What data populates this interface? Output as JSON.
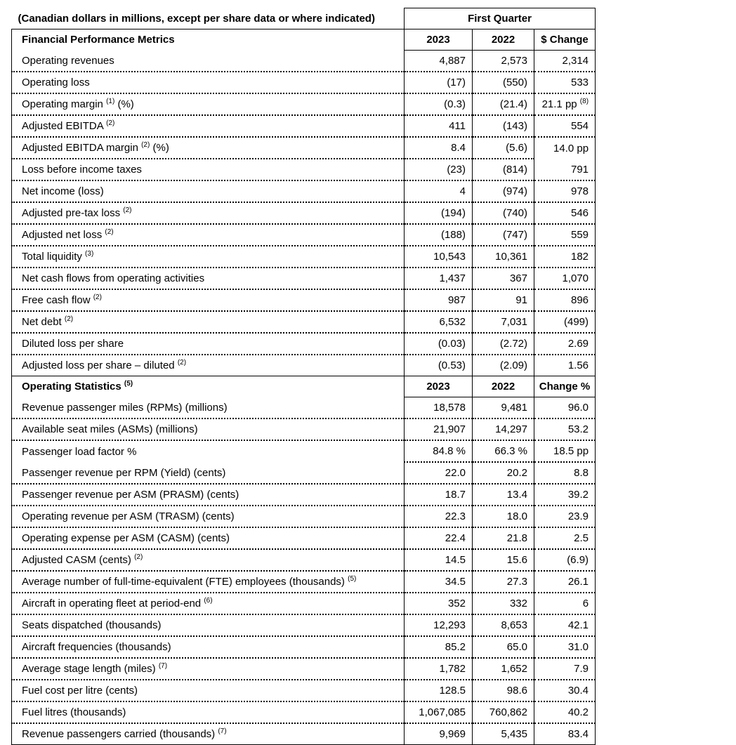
{
  "table": {
    "units_note": "(Canadian dollars in millions, except per share data or where indicated)",
    "period_header": "First Quarter",
    "sections": [
      {
        "header": {
          "label": "Financial Performance Metrics",
          "sup": "",
          "c1": "2023",
          "c2": "2022",
          "c3": "$ Change"
        },
        "rows": [
          {
            "label": "Operating revenues",
            "v1": "4,887",
            "v2": "2,573",
            "change": "2,314"
          },
          {
            "label": "Operating loss",
            "v1": "(17)",
            "v2": "(550)",
            "change": "533"
          },
          {
            "label": "Operating margin ",
            "sup": "(1)",
            "label_after": " (%)",
            "v1": "(0.3)",
            "v2": "(21.4)",
            "change": "21.1 pp ",
            "change_sup": "(8)"
          },
          {
            "label": "Adjusted EBITDA ",
            "sup": "(2)",
            "v1": "411",
            "v2": "(143)",
            "change": "554"
          },
          {
            "label": "Adjusted EBITDA margin ",
            "sup": "(2)",
            "label_after": " (%)",
            "v1": "8.4",
            "v2": "(5.6)",
            "change": "14.0 pp",
            "no_border_change": true
          },
          {
            "label": "Loss before income taxes",
            "v1": "(23)",
            "v2": "(814)",
            "change": "791"
          },
          {
            "label": "Net income (loss)",
            "v1": "4",
            "v2": "(974)",
            "change": "978"
          },
          {
            "label": "Adjusted pre-tax loss ",
            "sup": "(2)",
            "v1": "(194)",
            "v2": "(740)",
            "change": "546"
          },
          {
            "label": "Adjusted net loss ",
            "sup": "(2)",
            "v1": "(188)",
            "v2": "(747)",
            "change": "559"
          },
          {
            "label": "Total liquidity ",
            "sup": "(3)",
            "v1": "10,543",
            "v2": "10,361",
            "change": "182"
          },
          {
            "label": "Net cash flows from operating activities",
            "v1": "1,437",
            "v2": "367",
            "change": "1,070"
          },
          {
            "label": "Free cash flow ",
            "sup": "(2)",
            "v1": "987",
            "v2": "91",
            "change": "896"
          },
          {
            "label": "Net debt ",
            "sup": "(2)",
            "v1": "6,532",
            "v2": "7,031",
            "change": "(499)"
          },
          {
            "label": "Diluted loss per share",
            "v1": "(0.03)",
            "v2": "(2.72)",
            "change": "2.69"
          },
          {
            "label": "Adjusted loss per share – diluted ",
            "sup": "(2)",
            "v1": "(0.53)",
            "v2": "(2.09)",
            "change": "1.56"
          }
        ]
      },
      {
        "header": {
          "label": "Operating Statistics ",
          "sup": "(5)",
          "c1": "2023",
          "c2": "2022",
          "c3": "Change %"
        },
        "rows": [
          {
            "label": "Revenue passenger miles (RPMs) (millions)",
            "v1": "18,578",
            "v2": "9,481",
            "change": "96.0"
          },
          {
            "label": "Available seat miles (ASMs) (millions)",
            "v1": "21,907",
            "v2": "14,297",
            "change": "53.2"
          },
          {
            "label": "Passenger load factor %",
            "v1": "84.8 %",
            "v2": "66.3 %",
            "change": "18.5 pp",
            "no_border_label": true
          },
          {
            "label": "Passenger revenue per RPM (Yield) (cents)",
            "v1": "22.0",
            "v2": "20.2",
            "change": "8.8"
          },
          {
            "label": "Passenger revenue per ASM (PRASM) (cents)",
            "v1": "18.7",
            "v2": "13.4",
            "change": "39.2"
          },
          {
            "label": "Operating revenue per ASM (TRASM) (cents)",
            "v1": "22.3",
            "v2": "18.0",
            "change": "23.9"
          },
          {
            "label": "Operating expense per ASM (CASM) (cents)",
            "v1": "22.4",
            "v2": "21.8",
            "change": "2.5"
          },
          {
            "label": "Adjusted CASM (cents) ",
            "sup": "(2)",
            "v1": "14.5",
            "v2": "15.6",
            "change": "(6.9)"
          },
          {
            "label": "Average number of full-time-equivalent (FTE) employees (thousands) ",
            "sup": "(5)",
            "v1": "34.5",
            "v2": "27.3",
            "change": "26.1"
          },
          {
            "label": "Aircraft in operating fleet at period-end ",
            "sup": "(6)",
            "v1": "352",
            "v2": "332",
            "change": "6"
          },
          {
            "label": "Seats dispatched (thousands)",
            "v1": "12,293",
            "v2": "8,653",
            "change": "42.1"
          },
          {
            "label": "Aircraft frequencies (thousands)",
            "v1": "85.2",
            "v2": "65.0",
            "change": "31.0"
          },
          {
            "label": "Average stage length (miles) ",
            "sup": "(7)",
            "v1": "1,782",
            "v2": "1,652",
            "change": "7.9"
          },
          {
            "label": "Fuel cost per litre (cents)",
            "v1": "128.5",
            "v2": "98.6",
            "change": "30.4"
          },
          {
            "label": "Fuel litres (thousands)",
            "v1": "1,067,085",
            "v2": "760,862",
            "change": "40.2"
          },
          {
            "label": "Revenue passengers carried (thousands) ",
            "sup": "(7)",
            "v1": "9,969",
            "v2": "5,435",
            "change": "83.4"
          }
        ]
      }
    ]
  }
}
